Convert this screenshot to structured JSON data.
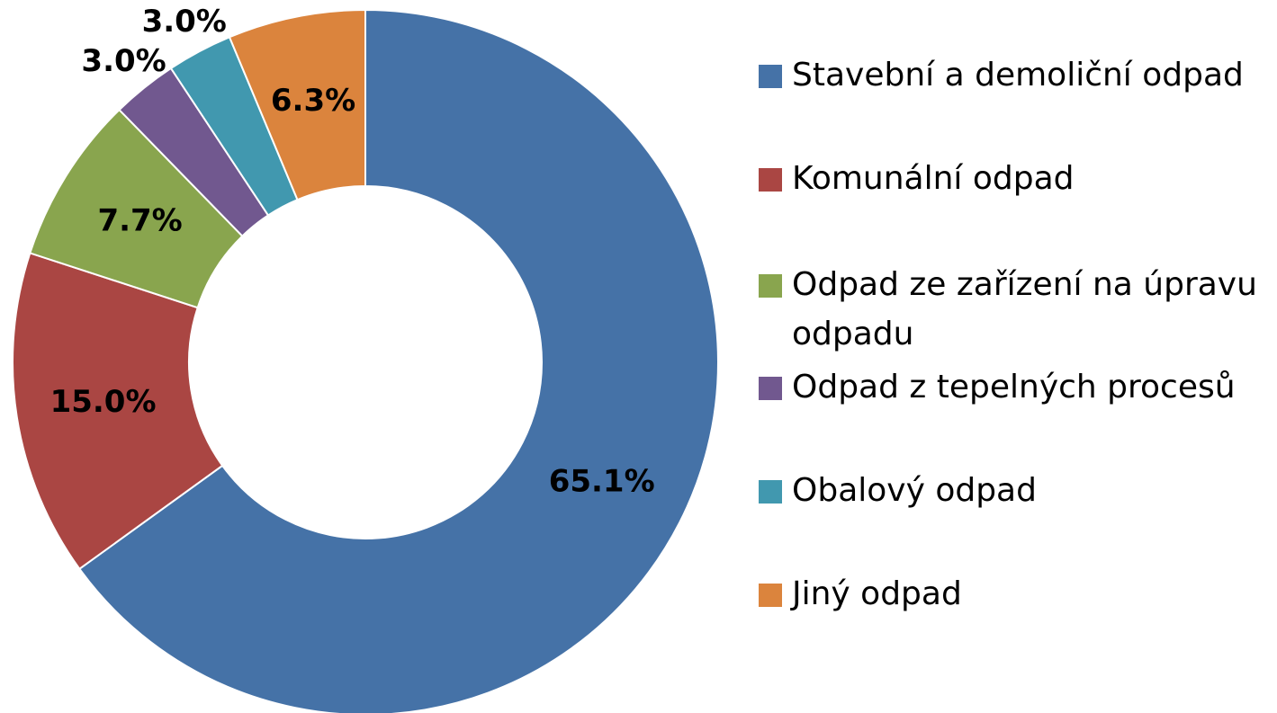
{
  "chart_data": {
    "type": "donut",
    "categories": [
      "Stavební a demoliční odpad",
      "Komunální odpad",
      "Odpad ze zařízení na úpravu odpadu",
      "Odpad z tepelných procesů",
      "Obalový odpad",
      "Jiný odpad"
    ],
    "values": [
      65.1,
      15.0,
      7.7,
      3.0,
      3.0,
      6.3
    ],
    "value_labels": [
      "65.1%",
      "15.0%",
      "7.7%",
      "3.0%",
      "3.0%",
      "6.3%"
    ],
    "colors": [
      "#4572a7",
      "#aa4643",
      "#89a54e",
      "#71588f",
      "#4198af",
      "#db843d"
    ],
    "legend": "right"
  }
}
